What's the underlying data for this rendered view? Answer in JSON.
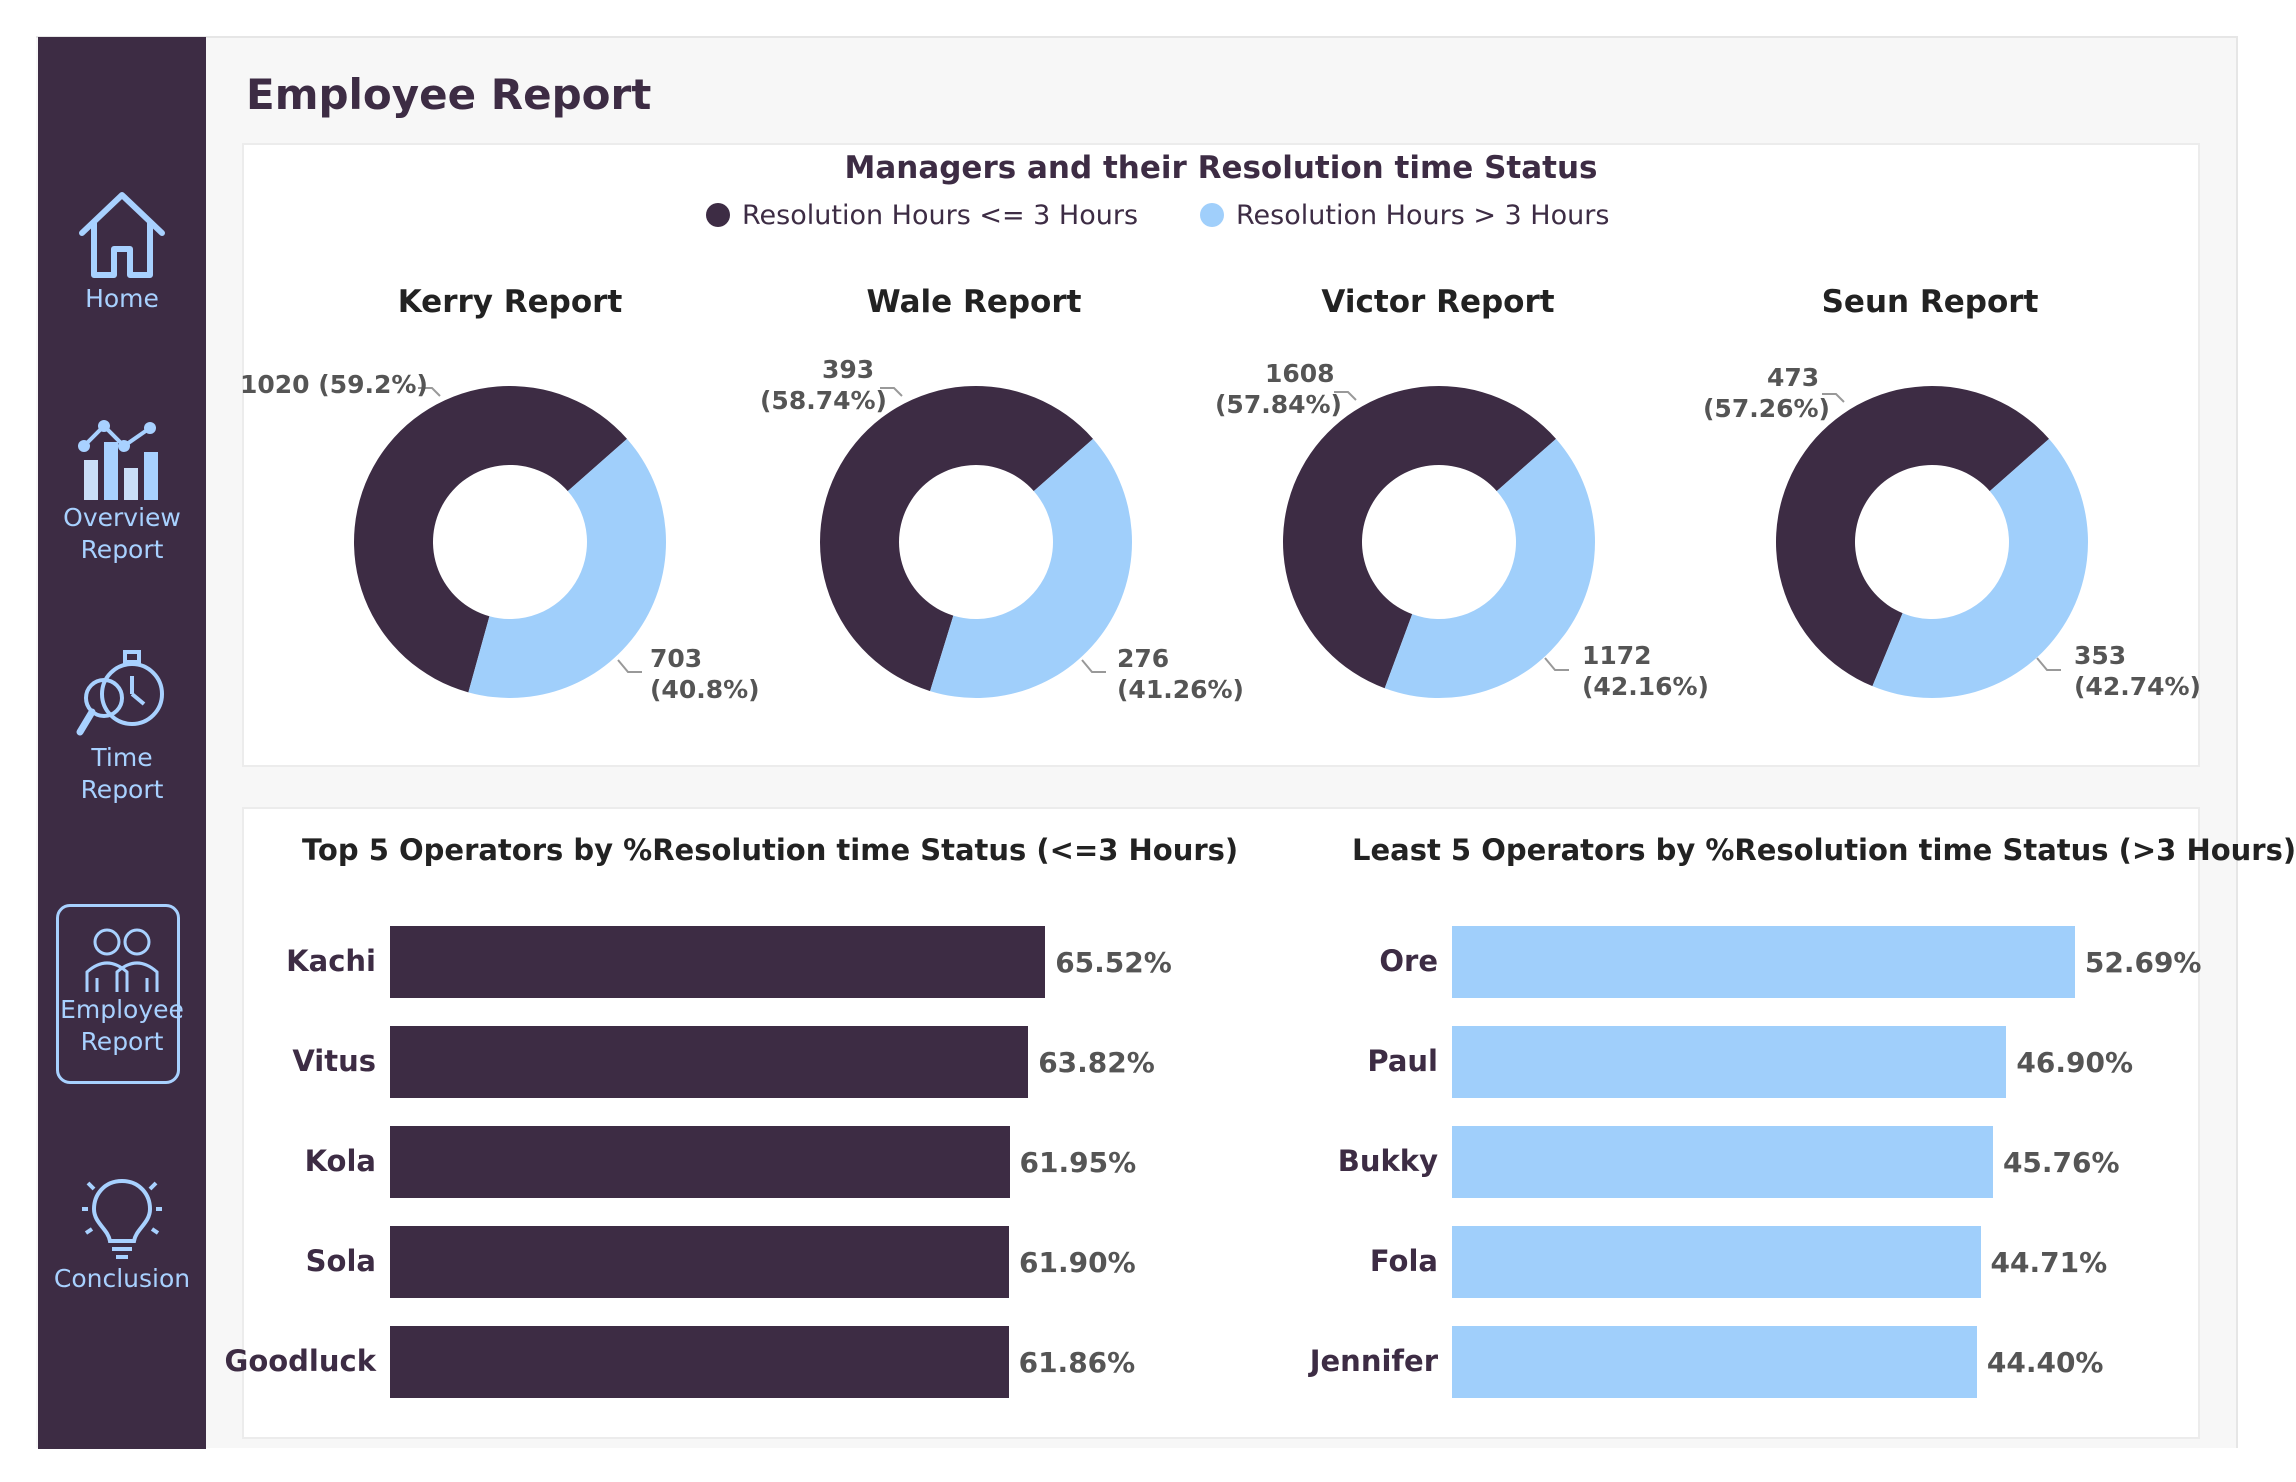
{
  "sidebar": {
    "items": [
      {
        "label": "Home",
        "icon": "home-icon"
      },
      {
        "label": "Overview Report",
        "line1": "Overview",
        "line2": "Report",
        "icon": "bar-line-chart-icon"
      },
      {
        "label": "Time Report",
        "line1": "Time",
        "line2": "Report",
        "icon": "stopwatch-search-icon"
      },
      {
        "label": "Employee Report",
        "line1": "Employee",
        "line2": "Report",
        "icon": "employees-icon",
        "active": true
      },
      {
        "label": "Conclusion",
        "icon": "lightbulb-icon"
      }
    ]
  },
  "page": {
    "title": "Employee Report"
  },
  "colors": {
    "dark": "#3d2c44",
    "light": "#a0cffb"
  },
  "managers_panel": {
    "title": "Managers and their Resolution time Status",
    "legend": [
      {
        "label": "Resolution Hours <= 3 Hours",
        "color": "#3d2c44"
      },
      {
        "label": "Resolution Hours > 3 Hours",
        "color": "#a0cffb"
      }
    ]
  },
  "top_panel": {
    "title": "Top 5 Operators by %Resolution time Status (<=3 Hours)"
  },
  "least_panel": {
    "title": "Least 5 Operators by %Resolution time Status (>3 Hours)"
  },
  "chart_data": [
    {
      "type": "pie",
      "title": "Kerry Report",
      "categories": [
        "Resolution Hours <= 3 Hours",
        "Resolution Hours > 3 Hours"
      ],
      "values": [
        1020,
        703
      ],
      "labels": [
        {
          "value": "1020 (59.2%)"
        },
        {
          "line1": "703",
          "line2": "(40.8%)"
        }
      ]
    },
    {
      "type": "pie",
      "title": "Wale Report",
      "categories": [
        "Resolution Hours <= 3 Hours",
        "Resolution Hours > 3 Hours"
      ],
      "values": [
        393,
        276
      ],
      "labels": [
        {
          "line1": "393",
          "line2": "(58.74%)"
        },
        {
          "line1": "276",
          "line2": "(41.26%)"
        }
      ]
    },
    {
      "type": "pie",
      "title": "Victor Report",
      "categories": [
        "Resolution Hours <= 3 Hours",
        "Resolution Hours > 3 Hours"
      ],
      "values": [
        1608,
        1172
      ],
      "labels": [
        {
          "line1": "1608",
          "line2": "(57.84%)"
        },
        {
          "line1": "1172",
          "line2": "(42.16%)"
        }
      ]
    },
    {
      "type": "pie",
      "title": "Seun Report",
      "categories": [
        "Resolution Hours <= 3 Hours",
        "Resolution Hours > 3 Hours"
      ],
      "values": [
        473,
        353
      ],
      "labels": [
        {
          "line1": "473",
          "line2": "(57.26%)"
        },
        {
          "line1": "353",
          "line2": "(42.74%)"
        }
      ]
    },
    {
      "type": "bar",
      "orientation": "horizontal",
      "title": "Top 5 Operators by %Resolution time Status (<=3 Hours)",
      "categories": [
        "Kachi",
        "Vitus",
        "Kola",
        "Sola",
        "Goodluck"
      ],
      "values": [
        65.52,
        63.82,
        61.95,
        61.9,
        61.86
      ],
      "value_labels": [
        "65.52%",
        "63.82%",
        "61.95%",
        "61.90%",
        "61.86%"
      ],
      "xlim": [
        0,
        70
      ]
    },
    {
      "type": "bar",
      "orientation": "horizontal",
      "title": "Least 5 Operators by %Resolution time Status (>3 Hours)",
      "categories": [
        "Ore",
        "Paul",
        "Bukky",
        "Fola",
        "Jennifer"
      ],
      "values": [
        52.69,
        46.9,
        45.76,
        44.71,
        44.4
      ],
      "value_labels": [
        "52.69%",
        "46.90%",
        "45.76%",
        "44.71%",
        "44.40%"
      ],
      "xlim": [
        0,
        56
      ]
    }
  ]
}
